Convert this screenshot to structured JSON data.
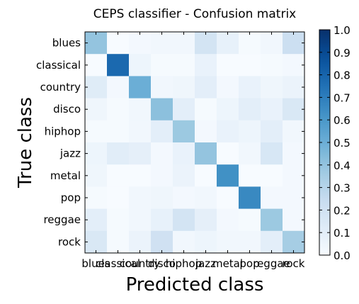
{
  "chart_data": {
    "type": "heatmap",
    "title": "CEPS classifier - Confusion matrix",
    "xlabel": "Predicted class",
    "ylabel": "True class",
    "classes": [
      "blues",
      "classical",
      "country",
      "disco",
      "hiphop",
      "jazz",
      "metal",
      "pop",
      "reggae",
      "rock"
    ],
    "matrix": [
      [
        0.4,
        0.0,
        0.02,
        0.03,
        0.03,
        0.18,
        0.08,
        0.01,
        0.03,
        0.22
      ],
      [
        0.0,
        0.78,
        0.05,
        0.01,
        0.01,
        0.07,
        0.0,
        0.0,
        0.01,
        0.02
      ],
      [
        0.12,
        0.02,
        0.5,
        0.03,
        0.04,
        0.1,
        0.02,
        0.07,
        0.04,
        0.06
      ],
      [
        0.04,
        0.01,
        0.03,
        0.42,
        0.1,
        0.01,
        0.05,
        0.1,
        0.07,
        0.15
      ],
      [
        0.01,
        0.01,
        0.03,
        0.1,
        0.38,
        0.02,
        0.07,
        0.05,
        0.1,
        0.03
      ],
      [
        0.05,
        0.11,
        0.09,
        0.02,
        0.07,
        0.4,
        0.0,
        0.03,
        0.16,
        0.02
      ],
      [
        0.04,
        0.0,
        0.0,
        0.02,
        0.06,
        0.0,
        0.63,
        0.0,
        0.0,
        0.02
      ],
      [
        0.01,
        0.0,
        0.03,
        0.04,
        0.02,
        0.03,
        0.0,
        0.66,
        0.02,
        0.02
      ],
      [
        0.1,
        0.01,
        0.03,
        0.08,
        0.18,
        0.09,
        0.02,
        0.01,
        0.38,
        0.02
      ],
      [
        0.15,
        0.01,
        0.06,
        0.2,
        0.03,
        0.05,
        0.03,
        0.03,
        0.1,
        0.35
      ]
    ],
    "colorbar": {
      "min": 0.0,
      "max": 1.0,
      "ticks": [
        "0.0",
        "0.1",
        "0.2",
        "0.3",
        "0.4",
        "0.5",
        "0.6",
        "0.7",
        "0.8",
        "0.9",
        "1.0"
      ],
      "colormap": "Blues"
    }
  }
}
